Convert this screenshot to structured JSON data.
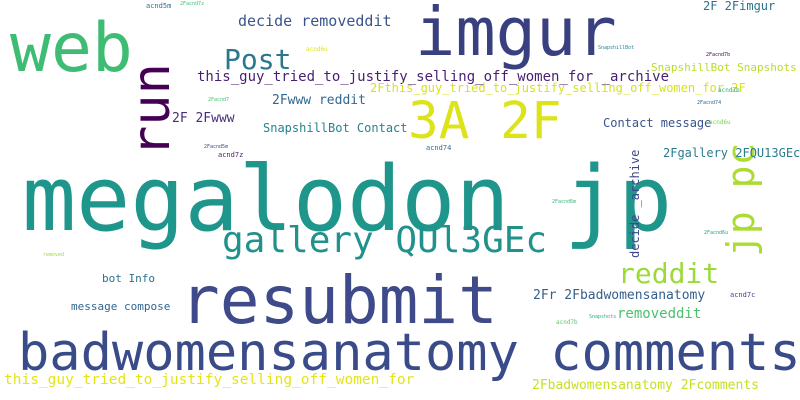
{
  "words": [
    {
      "id": "megalodon-jp",
      "text": "megalodon jp",
      "color": "#1f968b"
    },
    {
      "id": "imgur",
      "text": "imgur",
      "color": "#39407f"
    },
    {
      "id": "web",
      "text": "web",
      "color": "#3fbc73"
    },
    {
      "id": "run",
      "text": "run",
      "color": "#440154"
    },
    {
      "id": "resubmit",
      "text": "resubmit",
      "color": "#3e4a89"
    },
    {
      "id": "badwomensanatomy-comments",
      "text": "badwomensanatomy comments",
      "color": "#3a4b8a"
    },
    {
      "id": "gallery-qul3gec",
      "text": "gallery QUl3GEc",
      "color": "#21918c"
    },
    {
      "id": "3a-2f",
      "text": "3A 2F",
      "color": "#dce319"
    },
    {
      "id": "jp-pc",
      "text": "jp pc",
      "color": "#addc30"
    },
    {
      "id": "post",
      "text": "Post",
      "color": "#2a788e"
    },
    {
      "id": "reddit",
      "text": "reddit",
      "color": "#9bd93c"
    },
    {
      "id": "decide-removeddit",
      "text": "decide removeddit",
      "color": "#39558c"
    },
    {
      "id": "this-guy-archive",
      "text": "this_guy_tried_to_justify_selling_off_women_for _archive",
      "color": "#481f70"
    },
    {
      "id": "2fthis-guy-2f",
      "text": "2Fthis_guy_tried_to_justify_selling_off_women_for 2F",
      "color": "#d8e219"
    },
    {
      "id": "this-guy-long",
      "text": "this_guy_tried_to_justify_selling_off_women_for",
      "color": "#e5e419"
    },
    {
      "id": "2fwww-reddit",
      "text": "2Fwww reddit",
      "color": "#31688e"
    },
    {
      "id": "2f-2fimgur",
      "text": "2F 2Fimgur",
      "color": "#2c728e"
    },
    {
      "id": "2f-2fwww",
      "text": "2F 2Fwww",
      "color": "#472d7b"
    },
    {
      "id": "snapshillbot-contact",
      "text": "SnapshillBot Contact",
      "color": "#25848e"
    },
    {
      "id": "snapshillbot-snapshots",
      "text": "SnapshillBot Snapshots",
      "color": "#b8de29"
    },
    {
      "id": "contact-message",
      "text": "Contact message",
      "color": "#3a548c"
    },
    {
      "id": "2fgallery-2fqu13gec",
      "text": "2Fgallery 2FQU13GEc",
      "color": "#287c8e"
    },
    {
      "id": "decide-archive",
      "text": "decide _archive",
      "color": "#3f4788"
    },
    {
      "id": "2fr-2fbadwomensanatomy",
      "text": "2Fr 2Fbadwomensanatomy",
      "color": "#35608d"
    },
    {
      "id": "removeddit",
      "text": "removeddit",
      "color": "#4ac16d"
    },
    {
      "id": "bot-info",
      "text": "bot Info",
      "color": "#2d718e"
    },
    {
      "id": "message-compose",
      "text": "message compose",
      "color": "#31668e"
    },
    {
      "id": "2fbadwomensanatomy-2fcomments",
      "text": "2Fbadwomensanatomy 2Fcomments",
      "color": "#c7e020"
    },
    {
      "id": "tiny-2facnd7z-top",
      "text": "2Facnd7z",
      "color": "#3dbc74"
    },
    {
      "id": "tiny-acnd5m",
      "text": "acnd5m",
      "color": "#2c728e"
    },
    {
      "id": "tiny-acnd6u-a",
      "text": "acnd6u",
      "color": "#dde318"
    },
    {
      "id": "tiny-snapshillbot",
      "text": "SnapshillBot",
      "color": "#24868e"
    },
    {
      "id": "tiny-2facnd7b",
      "text": "2Facnd7b",
      "color": "#440154"
    },
    {
      "id": "tiny-acnd7b-a",
      "text": "acnd7b",
      "color": "#2ab07f"
    },
    {
      "id": "tiny-2facnd7",
      "text": "2Facnd7",
      "color": "#43bf71"
    },
    {
      "id": "tiny-2facnd74",
      "text": "2Facnd74",
      "color": "#31688e"
    },
    {
      "id": "tiny-acnd6u-b",
      "text": "acnd6u",
      "color": "#7ad151"
    },
    {
      "id": "tiny-2facnd5m",
      "text": "2Facnd5m",
      "color": "#3e4989"
    },
    {
      "id": "tiny-acnd7z",
      "text": "acnd7z",
      "color": "#481f70"
    },
    {
      "id": "tiny-acnd74",
      "text": "acnd74",
      "color": "#2f6c8e"
    },
    {
      "id": "tiny-2facnd6m",
      "text": "2Facnd6m",
      "color": "#35b779"
    },
    {
      "id": "tiny-2facnd6u",
      "text": "2Facnd6u",
      "color": "#20a386"
    },
    {
      "id": "tiny-removed",
      "text": "removed",
      "color": "#9fda3a"
    },
    {
      "id": "tiny-acnd7c",
      "text": "acnd7c",
      "color": "#414487"
    },
    {
      "id": "tiny-snapshots",
      "text": "Snapshots",
      "color": "#29af7f"
    },
    {
      "id": "tiny-acnd7b-b",
      "text": "acnd7b",
      "color": "#5ec962"
    }
  ]
}
